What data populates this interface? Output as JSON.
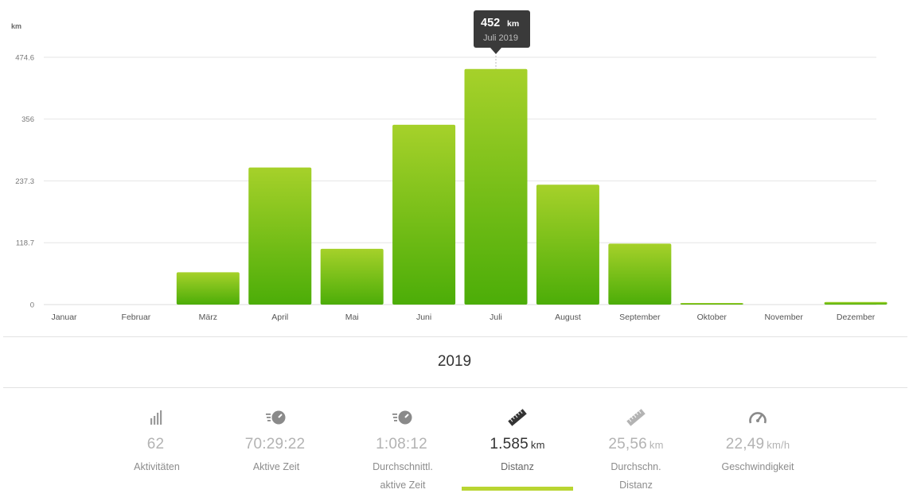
{
  "chart_data": {
    "type": "bar",
    "y_unit": "km",
    "categories": [
      "Januar",
      "Februar",
      "März",
      "April",
      "Mai",
      "Juni",
      "Juli",
      "August",
      "September",
      "Oktober",
      "November",
      "Dezember"
    ],
    "values": [
      0,
      0,
      62,
      263,
      107,
      345,
      452,
      230,
      117,
      3,
      0,
      5
    ],
    "ylim": [
      0,
      474.6
    ],
    "yticks": [
      "0",
      "118.7",
      "237.3",
      "356",
      "474.6"
    ],
    "ytick_values": [
      0,
      118.7,
      237.3,
      356,
      474.6
    ],
    "bar_color_top": "#a6d12a",
    "bar_color_bottom": "#4cad08",
    "grid": true,
    "tooltip": {
      "value": "452",
      "unit": "km",
      "label": "Juli 2019",
      "category_index": 6
    }
  },
  "year": "2019",
  "stats": [
    {
      "icon": "bar-chart-icon",
      "value": "62",
      "unit": "",
      "label1": "Aktivitäten",
      "label2": ""
    },
    {
      "icon": "stopwatch-icon",
      "value": "70:29:22",
      "unit": "",
      "label1": "Aktive Zeit",
      "label2": ""
    },
    {
      "icon": "stopwatch-icon",
      "value": "1:08:12",
      "unit": "",
      "label1": "Durchschnittl.",
      "label2": "aktive Zeit"
    },
    {
      "icon": "ruler-icon",
      "value": "1.585",
      "unit": "km",
      "label1": "Distanz",
      "label2": "",
      "active": true
    },
    {
      "icon": "ruler-icon",
      "value": "25,56",
      "unit": "km",
      "label1": "Durchschn.",
      "label2": "Distanz"
    },
    {
      "icon": "speedometer-icon",
      "value": "22,49",
      "unit": "km/h",
      "label1": "Geschwindigkeit",
      "label2": ""
    }
  ],
  "colors": {
    "accent": "#b9d532",
    "tooltip_bg": "#3a3a3a"
  }
}
